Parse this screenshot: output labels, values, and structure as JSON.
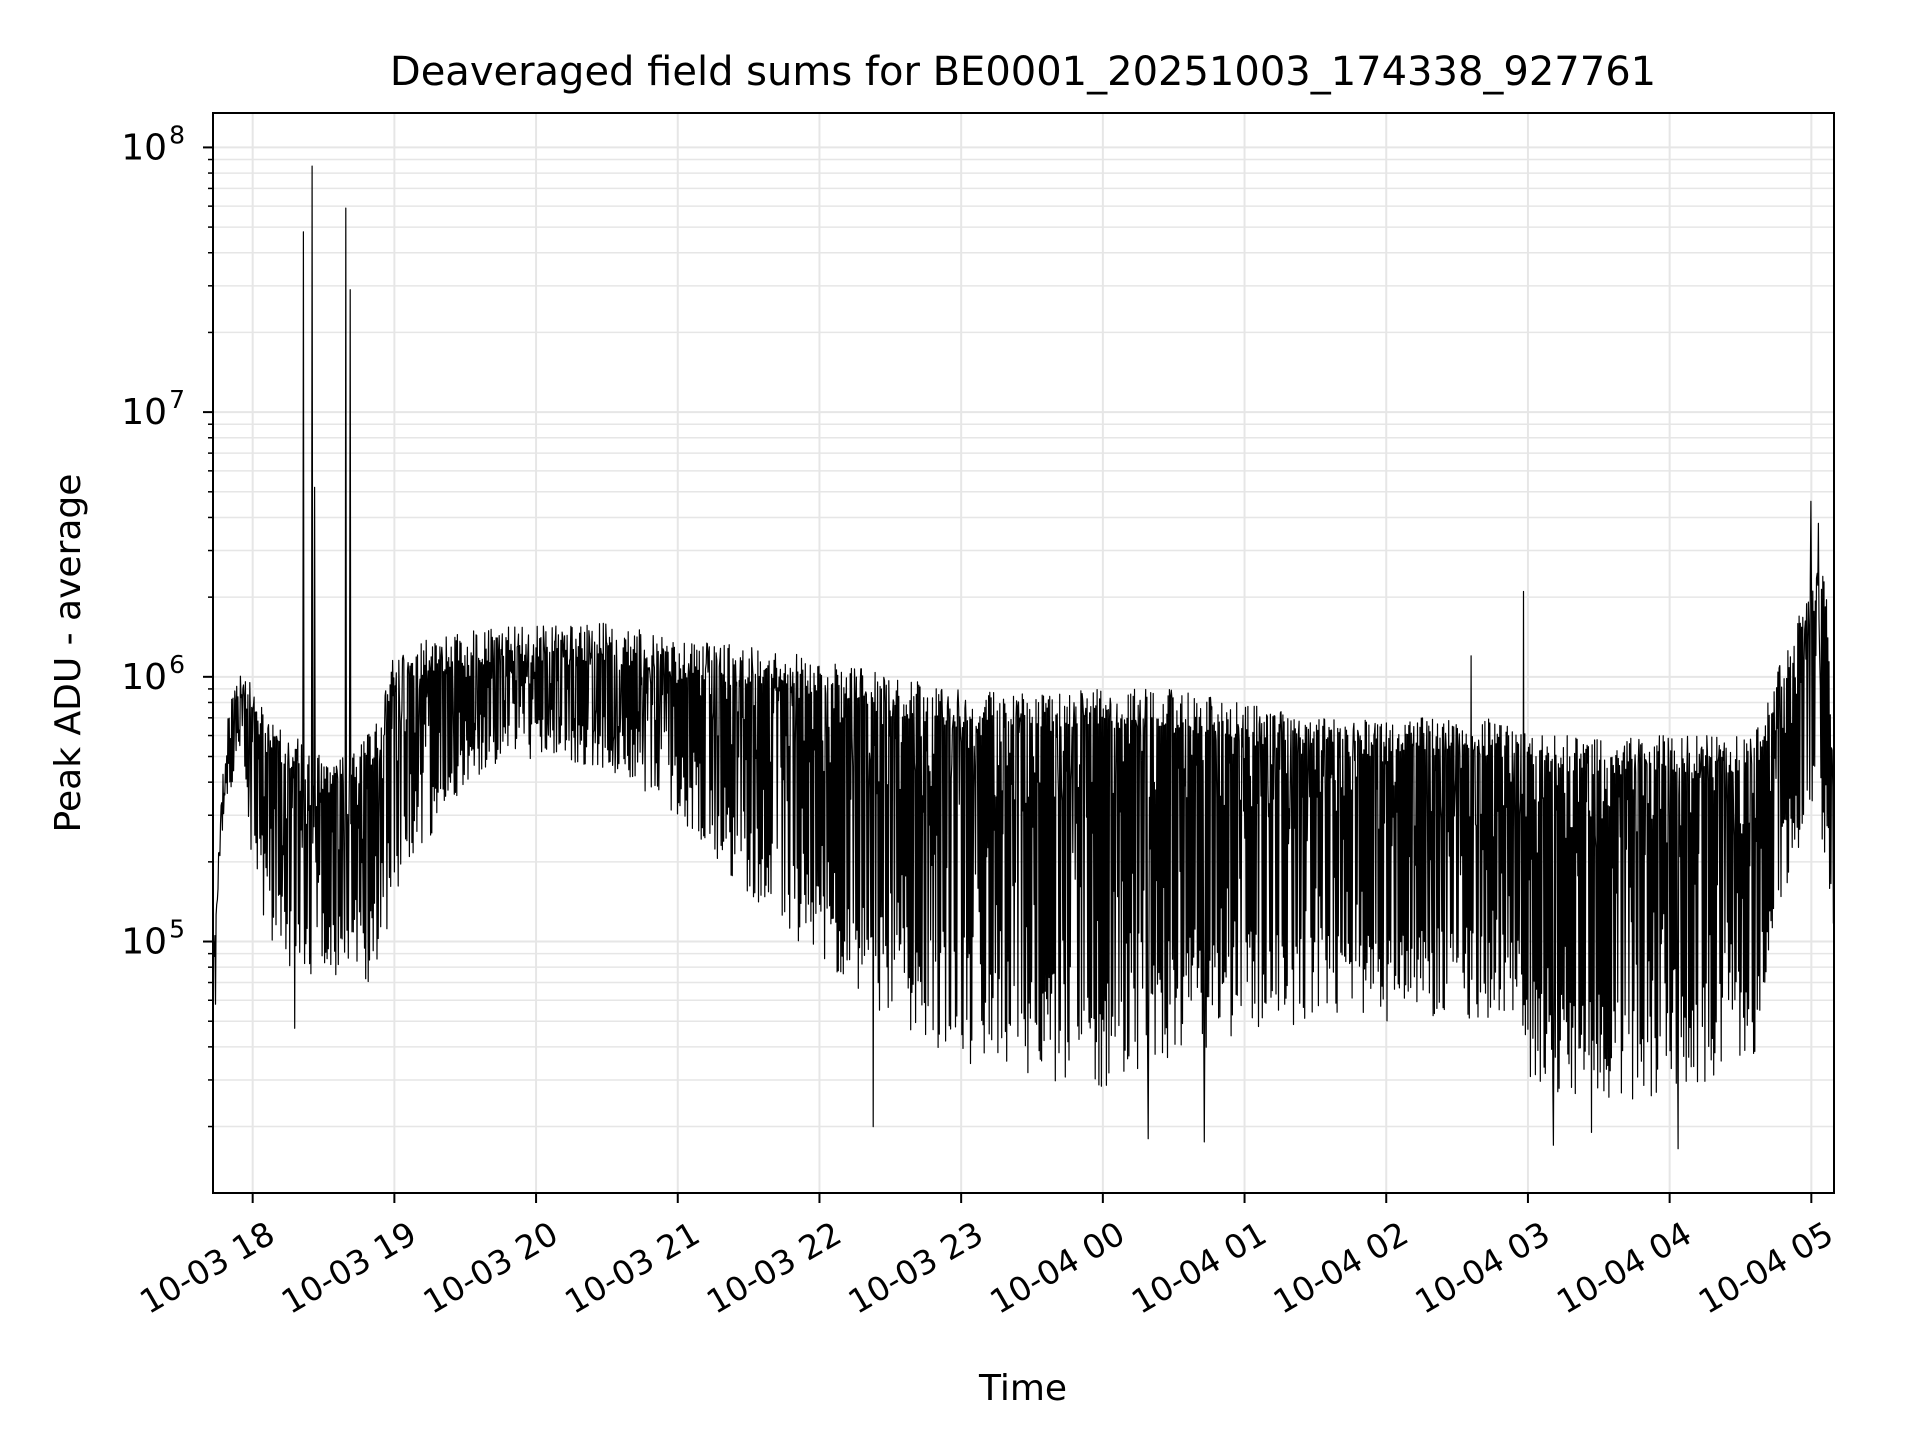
{
  "chart_data": {
    "type": "line",
    "title": "Deaveraged field sums for BE0001_20251003_174338_927761",
    "xlabel": "Time",
    "ylabel": "Peak ADU - average",
    "yscale": "log",
    "grid": true,
    "x_range_hours": [
      17.72,
      29.16
    ],
    "ylim_log10": [
      4.05,
      8.13
    ],
    "x_ticks": [
      {
        "hour": 18,
        "label": "10-03 18"
      },
      {
        "hour": 19,
        "label": "10-03 19"
      },
      {
        "hour": 20,
        "label": "10-03 20"
      },
      {
        "hour": 21,
        "label": "10-03 21"
      },
      {
        "hour": 22,
        "label": "10-03 22"
      },
      {
        "hour": 23,
        "label": "10-03 23"
      },
      {
        "hour": 24,
        "label": "10-04 00"
      },
      {
        "hour": 25,
        "label": "10-04 01"
      },
      {
        "hour": 26,
        "label": "10-04 02"
      },
      {
        "hour": 27,
        "label": "10-04 03"
      },
      {
        "hour": 28,
        "label": "10-04 04"
      },
      {
        "hour": 29,
        "label": "10-04 05"
      }
    ],
    "y_ticks": [
      {
        "exp": 5,
        "base": "10",
        "sup": "5"
      },
      {
        "exp": 6,
        "base": "10",
        "sup": "6"
      },
      {
        "exp": 7,
        "base": "10",
        "sup": "7"
      },
      {
        "exp": 8,
        "base": "10",
        "sup": "8"
      }
    ],
    "series": [
      {
        "name": "Peak ADU - average",
        "color": "#000000",
        "envelope_hours": [
          17.72,
          17.8,
          17.9,
          18.0,
          18.1,
          18.3,
          18.5,
          18.7,
          18.9,
          19.0,
          19.5,
          20.0,
          20.5,
          21.0,
          21.5,
          22.0,
          22.5,
          23.0,
          23.5,
          24.0,
          24.5,
          25.0,
          25.5,
          26.0,
          26.5,
          26.95,
          27.0,
          27.3,
          27.6,
          28.0,
          28.3,
          28.6,
          28.8,
          29.0,
          29.1,
          29.16
        ],
        "envelope_high": [
          90000,
          600000,
          1200000,
          900000,
          700000,
          600000,
          500000,
          500000,
          700000,
          1300000,
          1500000,
          1600000,
          1600000,
          1400000,
          1300000,
          1200000,
          1000000,
          900000,
          900000,
          900000,
          900000,
          800000,
          700000,
          700000,
          700000,
          700000,
          600000,
          600000,
          600000,
          600000,
          600000,
          600000,
          1200000,
          2500000,
          2500000,
          400000
        ],
        "envelope_low": [
          80000,
          300000,
          500000,
          200000,
          100000,
          70000,
          80000,
          65000,
          70000,
          150000,
          400000,
          500000,
          450000,
          300000,
          150000,
          80000,
          50000,
          35000,
          30000,
          28000,
          35000,
          45000,
          50000,
          50000,
          50000,
          50000,
          30000,
          25000,
          25000,
          25000,
          28000,
          35000,
          150000,
          300000,
          200000,
          100000
        ],
        "spikes": [
          {
            "hour": 18.36,
            "value": 48000000
          },
          {
            "hour": 18.42,
            "value": 85000000
          },
          {
            "hour": 18.44,
            "value": 5200000
          },
          {
            "hour": 18.66,
            "value": 59000000
          },
          {
            "hour": 18.69,
            "value": 29000000
          },
          {
            "hour": 26.97,
            "value": 2100000
          },
          {
            "hour": 26.6,
            "value": 1200000
          },
          {
            "hour": 29.0,
            "value": 4600000
          },
          {
            "hour": 29.05,
            "value": 3800000
          }
        ],
        "dips": [
          {
            "hour": 18.3,
            "value": 47000
          },
          {
            "hour": 22.38,
            "value": 20000
          },
          {
            "hour": 24.32,
            "value": 18000
          },
          {
            "hour": 24.72,
            "value": 17500
          },
          {
            "hour": 27.18,
            "value": 17000
          },
          {
            "hour": 27.45,
            "value": 19000
          },
          {
            "hour": 28.06,
            "value": 16500
          }
        ]
      }
    ]
  }
}
